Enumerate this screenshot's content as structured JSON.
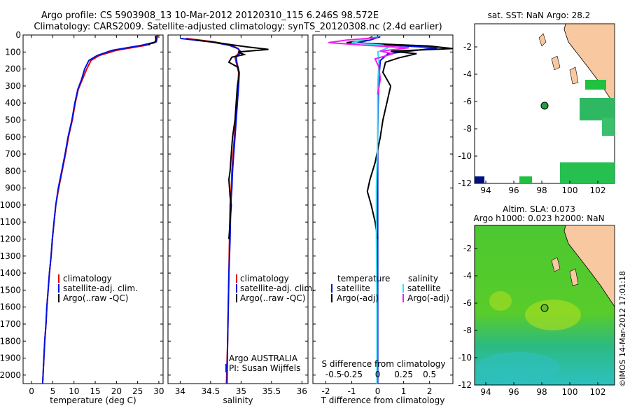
{
  "title": {
    "line1": "Argo profile: CS 5903908_13 10-Mar-2012 20120310_115 6.246S 98.572E",
    "line2": "Climatology: CARS2009. Satellite-adjusted climatology: synTS_20120308.nc (2.4d earlier)"
  },
  "colors": {
    "climatology": "#e00000",
    "satellite": "#0010e0",
    "argo": "#000000",
    "sat_s": "#30e0f0",
    "argo_s": "#f020f0",
    "land": "#f8c8a0",
    "sst": "#20c040"
  },
  "chart_data": [
    {
      "type": "line",
      "id": "temperature",
      "xlabel": "temperature (deg C)",
      "ylabel": "",
      "xlim": [
        -2,
        31
      ],
      "ylim": [
        2050,
        0
      ],
      "xticks": [
        0,
        5,
        10,
        15,
        20,
        25,
        30
      ],
      "yticks": [
        0,
        100,
        200,
        300,
        400,
        500,
        600,
        700,
        800,
        900,
        1000,
        1100,
        1200,
        1300,
        1400,
        1500,
        1600,
        1700,
        1800,
        1900,
        2000
      ],
      "legend": [
        "climatology",
        "satellite-adj. clim.",
        "Argo(..raw -QC)"
      ],
      "series": [
        {
          "name": "climatology",
          "color": "#e00000",
          "points": [
            [
              29.5,
              0
            ],
            [
              29.3,
              40
            ],
            [
              27,
              60
            ],
            [
              20,
              90
            ],
            [
              16,
              120
            ],
            [
              14,
              150
            ],
            [
              13,
              200
            ],
            [
              12,
              260
            ],
            [
              11,
              320
            ],
            [
              10.3,
              400
            ],
            [
              9.6,
              500
            ],
            [
              8.7,
              600
            ],
            [
              8,
              700
            ],
            [
              7.2,
              800
            ],
            [
              6.4,
              900
            ],
            [
              5.7,
              1000
            ],
            [
              5.3,
              1100
            ],
            [
              4.9,
              1200
            ],
            [
              4.6,
              1300
            ],
            [
              4.2,
              1400
            ],
            [
              3.9,
              1500
            ],
            [
              3.6,
              1600
            ],
            [
              3.4,
              1700
            ],
            [
              3.1,
              1800
            ],
            [
              2.9,
              1900
            ],
            [
              2.7,
              2000
            ],
            [
              2.6,
              2050
            ]
          ]
        },
        {
          "name": "satellite-adj. clim.",
          "color": "#0010e0",
          "points": [
            [
              29.7,
              0
            ],
            [
              29.4,
              40
            ],
            [
              26,
              60
            ],
            [
              19,
              90
            ],
            [
              15.5,
              120
            ],
            [
              13.5,
              150
            ],
            [
              12.5,
              200
            ],
            [
              11.8,
              260
            ],
            [
              10.9,
              320
            ],
            [
              10.2,
              400
            ],
            [
              9.5,
              500
            ],
            [
              8.6,
              600
            ],
            [
              7.9,
              700
            ],
            [
              7.1,
              800
            ],
            [
              6.3,
              900
            ],
            [
              5.7,
              1000
            ],
            [
              5.3,
              1100
            ],
            [
              4.9,
              1200
            ],
            [
              4.6,
              1300
            ],
            [
              4.2,
              1400
            ],
            [
              3.9,
              1500
            ],
            [
              3.6,
              1600
            ],
            [
              3.4,
              1700
            ],
            [
              3.1,
              1800
            ],
            [
              2.9,
              1900
            ],
            [
              2.7,
              2000
            ],
            [
              2.6,
              2050
            ]
          ]
        },
        {
          "name": "Argo(..raw -QC)",
          "color": "#000000",
          "points": [
            [
              29.2,
              5
            ],
            [
              29.3,
              30
            ],
            [
              29,
              45
            ],
            [
              27.8,
              52
            ],
            [
              27.6,
              60
            ]
          ]
        }
      ]
    },
    {
      "type": "line",
      "id": "salinity",
      "xlabel": "salinity",
      "xlim": [
        33.8,
        36.1
      ],
      "ylim": [
        2050,
        0
      ],
      "xticks": [
        34,
        34.5,
        35,
        35.5,
        36
      ],
      "xtick_labels": [
        "34",
        "34.5",
        "35",
        "35.5",
        "36"
      ],
      "legend": [
        "climatology",
        "satellite-adj. clim.",
        "Argo(..raw -QC)"
      ],
      "series": [
        {
          "name": "climatology",
          "color": "#e00000",
          "points": [
            [
              34.1,
              20
            ],
            [
              34.55,
              40
            ],
            [
              34.85,
              60
            ],
            [
              34.95,
              80
            ],
            [
              34.98,
              100
            ],
            [
              34.9,
              130
            ],
            [
              34.92,
              160
            ],
            [
              34.96,
              220
            ],
            [
              34.95,
              300
            ],
            [
              34.93,
              400
            ],
            [
              34.91,
              500
            ],
            [
              34.89,
              600
            ],
            [
              34.87,
              700
            ],
            [
              34.85,
              800
            ],
            [
              34.84,
              900
            ],
            [
              34.82,
              1000
            ],
            [
              34.81,
              1200
            ],
            [
              34.8,
              1400
            ],
            [
              34.79,
              1600
            ],
            [
              34.78,
              1800
            ],
            [
              34.76,
              2050
            ]
          ]
        },
        {
          "name": "satellite-adj. clim.",
          "color": "#0010e0",
          "points": [
            [
              34.0,
              20
            ],
            [
              34.5,
              40
            ],
            [
              34.8,
              60
            ],
            [
              34.95,
              80
            ],
            [
              35.0,
              100
            ],
            [
              34.92,
              130
            ],
            [
              34.93,
              160
            ],
            [
              34.97,
              220
            ],
            [
              34.96,
              300
            ],
            [
              34.94,
              400
            ],
            [
              34.92,
              500
            ],
            [
              34.9,
              600
            ],
            [
              34.88,
              700
            ],
            [
              34.86,
              800
            ],
            [
              34.85,
              900
            ],
            [
              34.83,
              1000
            ],
            [
              34.82,
              1200
            ],
            [
              34.8,
              1400
            ],
            [
              34.79,
              1600
            ],
            [
              34.78,
              1800
            ],
            [
              34.77,
              2050
            ]
          ]
        },
        {
          "name": "Argo(..raw -QC)",
          "color": "#000000",
          "points": [
            [
              34.25,
              30
            ],
            [
              34.6,
              45
            ],
            [
              34.9,
              60
            ],
            [
              35.1,
              70
            ],
            [
              35.45,
              85
            ],
            [
              34.95,
              100
            ],
            [
              35.05,
              115
            ],
            [
              34.85,
              130
            ],
            [
              34.8,
              160
            ],
            [
              34.95,
              190
            ],
            [
              34.97,
              230
            ],
            [
              34.94,
              300
            ],
            [
              34.92,
              400
            ],
            [
              34.9,
              500
            ],
            [
              34.86,
              600
            ],
            [
              34.84,
              700
            ],
            [
              34.82,
              800
            ],
            [
              34.8,
              850
            ],
            [
              34.82,
              950
            ],
            [
              34.84,
              1000
            ],
            [
              34.8,
              1200
            ]
          ]
        }
      ]
    },
    {
      "type": "line",
      "id": "difference",
      "xlabel": "T difference from climatology",
      "xlabel_top": "S difference from climatology",
      "xlim": [
        -2.5,
        2.9
      ],
      "ylim": [
        2050,
        0
      ],
      "xticks": [
        -2,
        -1,
        0,
        1,
        2
      ],
      "xtick_labels": [
        "-2",
        "-1",
        "0",
        "1",
        "2"
      ],
      "sticks": [
        -2,
        -1,
        0,
        1,
        2
      ],
      "stick_labels": [
        "-0.5",
        "-0.25",
        "0",
        "0.25",
        "0.5"
      ],
      "legend_t": {
        "title": "temperature",
        "items": [
          "satellite",
          "Argo(-adj)"
        ]
      },
      "legend_s": {
        "title": "salinity",
        "items": [
          "satellite",
          "Argo(-adj)"
        ]
      },
      "series": [
        {
          "name": "T satellite",
          "color": "#0010e0",
          "points": [
            [
              0.1,
              10
            ],
            [
              -0.3,
              30
            ],
            [
              -0.8,
              45
            ],
            [
              0.5,
              60
            ],
            [
              2.3,
              75
            ],
            [
              1.5,
              90
            ],
            [
              0.4,
              110
            ],
            [
              0.1,
              150
            ],
            [
              0.05,
              250
            ],
            [
              0.02,
              400
            ],
            [
              0.0,
              600
            ],
            [
              0.0,
              1000
            ],
            [
              0.0,
              1500
            ],
            [
              0.0,
              2050
            ]
          ]
        },
        {
          "name": "T Argo(-adj)",
          "color": "#000000",
          "points": [
            [
              -0.2,
              10
            ],
            [
              -0.5,
              30
            ],
            [
              -1.2,
              45
            ],
            [
              2.0,
              65
            ],
            [
              2.9,
              80
            ],
            [
              0.5,
              95
            ],
            [
              1.5,
              110
            ],
            [
              0.8,
              135
            ],
            [
              0.3,
              160
            ],
            [
              0.2,
              220
            ],
            [
              0.5,
              300
            ],
            [
              0.35,
              400
            ],
            [
              0.2,
              500
            ],
            [
              0.1,
              600
            ],
            [
              -0.1,
              750
            ],
            [
              -0.3,
              850
            ],
            [
              -0.4,
              920
            ],
            [
              -0.25,
              1000
            ],
            [
              -0.1,
              1100
            ],
            [
              0.0,
              1200
            ]
          ]
        },
        {
          "name": "S satellite",
          "color": "#30e0f0",
          "points": [
            [
              0.0,
              10
            ],
            [
              -0.6,
              30
            ],
            [
              -1.0,
              45
            ],
            [
              0.2,
              60
            ],
            [
              0.4,
              75
            ],
            [
              0.0,
              100
            ],
            [
              0.05,
              150
            ],
            [
              0.0,
              300
            ],
            [
              0.0,
              600
            ],
            [
              -0.05,
              900
            ],
            [
              -0.05,
              1200
            ],
            [
              -0.03,
              1600
            ],
            [
              -0.03,
              2050
            ]
          ]
        },
        {
          "name": "S Argo(-adj)",
          "color": "#f020f0",
          "points": [
            [
              0.0,
              15
            ],
            [
              -1.2,
              30
            ],
            [
              -1.9,
              45
            ],
            [
              -0.5,
              60
            ],
            [
              1.2,
              75
            ],
            [
              0.1,
              95
            ],
            [
              0.6,
              110
            ],
            [
              -0.1,
              140
            ],
            [
              0.05,
              190
            ],
            [
              0.1,
              260
            ],
            [
              0.0,
              350
            ]
          ]
        }
      ]
    }
  ],
  "maps": {
    "top": {
      "title": "sat. SST: NaN Argo: 28.2",
      "xticks": [
        "94",
        "96",
        "98",
        "100",
        "102"
      ],
      "yticks": [
        "-2",
        "-4",
        "-6",
        "-8",
        "-10",
        "-12"
      ]
    },
    "bottom": {
      "title1": "Altim. SLA: 0.073",
      "title2": "Argo h1000: 0.023 h2000: NaN",
      "xticks": [
        "94",
        "96",
        "98",
        "100",
        "102"
      ],
      "yticks": [
        "-2",
        "-4",
        "-6",
        "-8",
        "-10",
        "-12"
      ]
    }
  },
  "annotations": {
    "argo_country": "Argo AUSTRALIA",
    "pi": "PI: Susan Wijffels",
    "timestamp": "©IMOS 14-Mar-2012 17:01:18"
  }
}
